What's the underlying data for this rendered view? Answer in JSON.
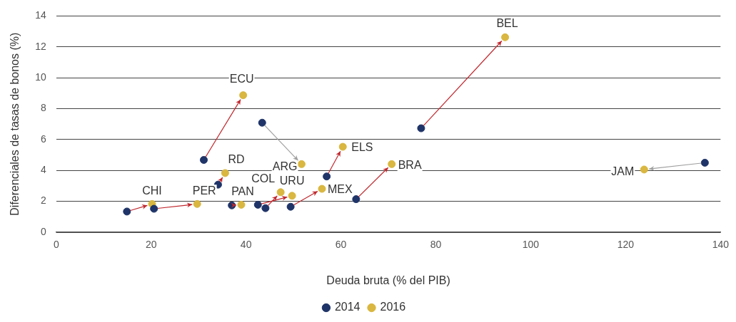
{
  "chart_data": {
    "type": "scatter",
    "xlabel": "Deuda bruta (% del PIB)",
    "ylabel": "Diferenciales de tasas de bonos (%)",
    "xlim": [
      0,
      140
    ],
    "xticks": [
      0,
      20,
      40,
      60,
      80,
      100,
      120,
      140
    ],
    "ylim": [
      0,
      14
    ],
    "yticks": [
      0,
      2,
      4,
      6,
      8,
      10,
      12,
      14
    ],
    "grid": "y",
    "legend": "bottom",
    "marker": "circle",
    "series": [
      {
        "name": "2014",
        "color": "#1f3468",
        "x": [
          14.9,
          20.6,
          31.1,
          34.1,
          37.0,
          44.1,
          42.5,
          43.4,
          49.4,
          57.0,
          63.2,
          76.9,
          136.7
        ],
        "values": [
          1.34,
          1.52,
          4.68,
          3.08,
          1.74,
          1.56,
          1.78,
          7.09,
          1.65,
          3.61,
          2.14,
          6.73,
          4.5
        ]
      },
      {
        "name": "2016",
        "color": "#d9b740",
        "x": [
          20.2,
          29.7,
          39.4,
          35.6,
          39.0,
          47.3,
          49.7,
          51.7,
          56.0,
          60.4,
          70.7,
          94.6,
          123.9
        ],
        "values": [
          1.83,
          1.83,
          8.87,
          3.83,
          1.78,
          2.59,
          2.36,
          4.41,
          2.81,
          5.53,
          4.41,
          12.62,
          4.06
        ]
      }
    ],
    "annotations": [
      {
        "text": "CHI",
        "x": 20.2,
        "y": 1.83
      },
      {
        "text": "PER",
        "x": 29.7,
        "y": 1.83
      },
      {
        "text": "ECU",
        "x": 39.4,
        "y": 8.87
      },
      {
        "text": "RD",
        "x": 35.6,
        "y": 3.83
      },
      {
        "text": "PAN",
        "x": 39.0,
        "y": 1.78
      },
      {
        "text": "COL",
        "x": 47.3,
        "y": 2.59
      },
      {
        "text": "URU",
        "x": 49.7,
        "y": 2.36
      },
      {
        "text": "ARG",
        "x": 51.7,
        "y": 4.41
      },
      {
        "text": "MEX",
        "x": 56.0,
        "y": 2.81
      },
      {
        "text": "ELS",
        "x": 60.4,
        "y": 5.53
      },
      {
        "text": "BRA",
        "x": 70.7,
        "y": 4.41
      },
      {
        "text": "BEL",
        "x": 94.6,
        "y": 12.62
      },
      {
        "text": "JAM",
        "x": 123.9,
        "y": 4.06
      }
    ]
  }
}
